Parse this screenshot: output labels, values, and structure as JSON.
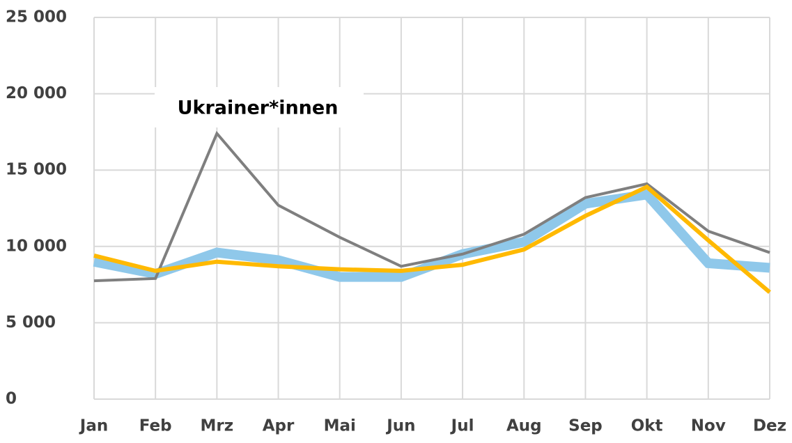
{
  "chart_data": {
    "type": "line",
    "annotation": "Ukrainer*innen",
    "categories": [
      "Jan",
      "Feb",
      "Mrz",
      "Apr",
      "Mai",
      "Jun",
      "Jul",
      "Aug",
      "Sep",
      "Okt",
      "Nov",
      "Dez"
    ],
    "series": [
      {
        "color": "#8fc8ea",
        "width": 14,
        "values": [
          9000,
          8200,
          9600,
          9100,
          8000,
          8000,
          9500,
          10300,
          12800,
          13400,
          8900,
          8600
        ]
      },
      {
        "color": "#7f7f7f",
        "width": 4,
        "values": [
          7750,
          7900,
          17400,
          12700,
          10600,
          8700,
          9500,
          10800,
          13200,
          14100,
          11000,
          9600
        ]
      },
      {
        "color": "#ffb900",
        "width": 6,
        "values": [
          9400,
          8400,
          9000,
          8700,
          8500,
          8400,
          8800,
          9800,
          12000,
          13900,
          10400,
          7000
        ]
      }
    ],
    "ylim": [
      0,
      25000
    ],
    "yticks": [
      0,
      {
        "value": 5000,
        "label": "5 000"
      },
      {
        "value": 10000,
        "label": "10 000"
      },
      {
        "value": 15000,
        "label": "15 000"
      },
      {
        "value": 20000,
        "label": "20 000"
      },
      {
        "value": 25000,
        "label": "25 000"
      }
    ],
    "grid": true
  }
}
